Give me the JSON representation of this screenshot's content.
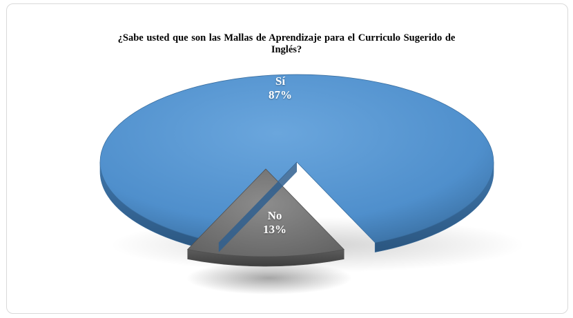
{
  "chart_data": {
    "type": "pie",
    "title_lines": [
      "¿Sabe usted que son las Mallas de Aprendizaje para el Curriculo Sugerido de",
      "Inglés?"
    ],
    "slices": [
      {
        "category": "Sí",
        "value": 87,
        "label": "87%",
        "color": "#5b9bd5"
      },
      {
        "category": "No",
        "value": 13,
        "label": "13%",
        "color": "#7f7f7f"
      }
    ],
    "style": "3d-exploded",
    "legend": "none"
  }
}
